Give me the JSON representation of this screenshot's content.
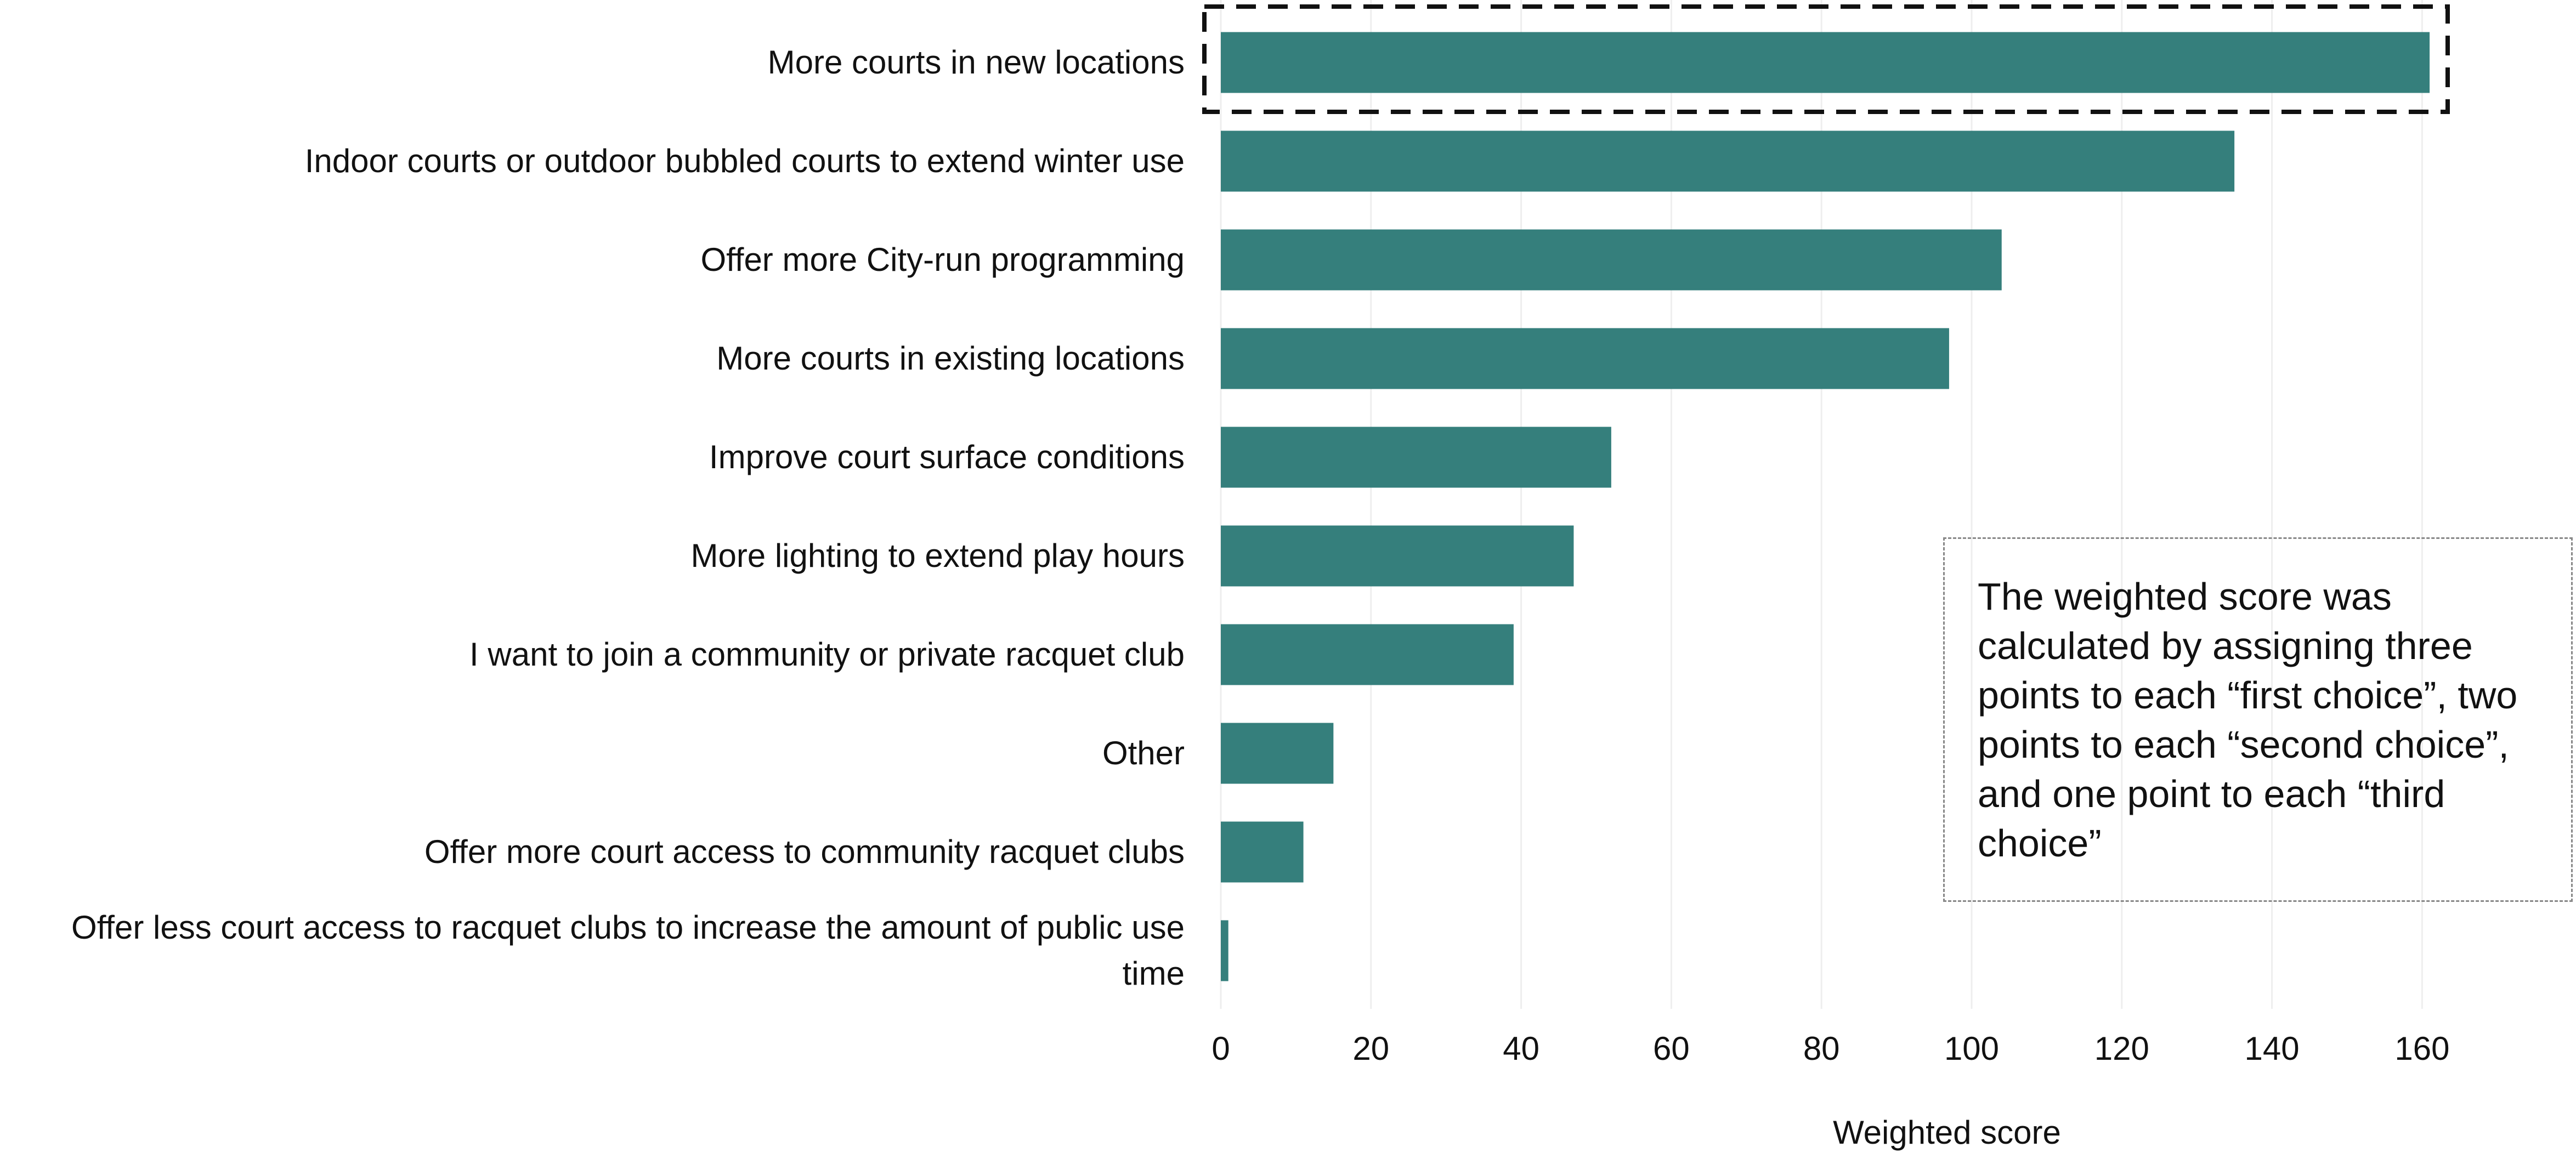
{
  "chart_data": {
    "type": "bar",
    "orientation": "horizontal",
    "categories": [
      "More courts in new locations",
      "Indoor courts or outdoor bubbled courts to extend winter use",
      "Offer more City-run programming",
      "More courts in existing locations",
      "Improve court surface conditions",
      "More lighting to extend play hours",
      "I want to join a community or private racquet club",
      "Other",
      "Offer more court access to community racquet clubs",
      "Offer less court access to racquet clubs to increase the amount of public use time"
    ],
    "values": [
      161,
      135,
      104,
      97,
      52,
      47,
      39,
      15,
      11,
      1
    ],
    "color": "#357f7c",
    "xlim": [
      0,
      175
    ],
    "xticks": [
      0,
      20,
      40,
      60,
      80,
      100,
      120,
      140,
      160
    ],
    "grid": true,
    "xlabel": "Weighted score",
    "annotation": "The weighted score was calculated by assigning three points to each “first choice”, two points to each “second choice”, and one point to each “third choice”"
  }
}
